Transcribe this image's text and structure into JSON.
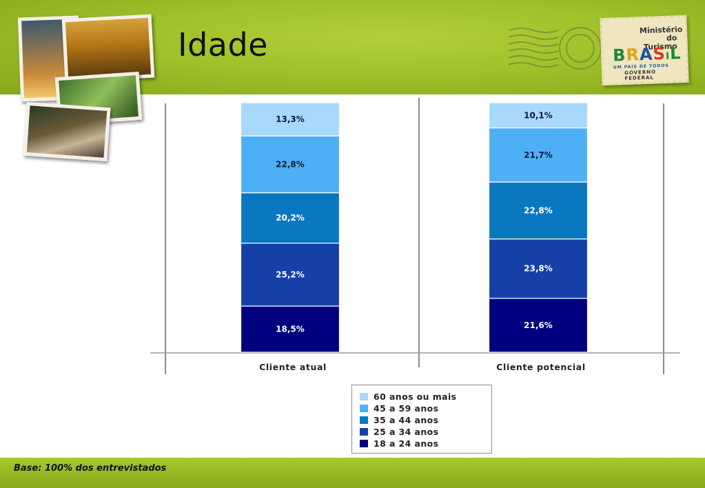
{
  "page": {
    "title": "Idade",
    "footnote": "Base: 100% dos entrevistados"
  },
  "stamp": {
    "ministry": "Ministério do Turismo",
    "brand_letters": [
      "B",
      "R",
      "A",
      "S",
      "I",
      "L"
    ],
    "tagline": "UM PAÍS DE TODOS",
    "government": "GOVERNO FEDERAL"
  },
  "colors": {
    "background_green": "#9fc12a",
    "series": [
      "#000080",
      "#1440a8",
      "#0a78c0",
      "#4db0f5",
      "#a8d8fb"
    ]
  },
  "chart_data": {
    "type": "bar",
    "stacked": true,
    "unit": "%",
    "categories": [
      "Cliente atual",
      "Cliente potencial"
    ],
    "series": [
      {
        "name": "18 a 24 anos",
        "values": [
          18.5,
          21.6
        ],
        "labels": [
          "18,5%",
          "21,6%"
        ]
      },
      {
        "name": "25 a 34 anos",
        "values": [
          25.2,
          23.8
        ],
        "labels": [
          "25,2%",
          "23,8%"
        ]
      },
      {
        "name": "35 a 44 anos",
        "values": [
          20.2,
          22.8
        ],
        "labels": [
          "20,2%",
          "22,8%"
        ]
      },
      {
        "name": "45 a 59 anos",
        "values": [
          22.8,
          21.7
        ],
        "labels": [
          "22,8%",
          "21,7%"
        ]
      },
      {
        "name": "60 anos ou mais",
        "values": [
          13.3,
          10.1
        ],
        "labels": [
          "13,3%",
          "10,1%"
        ]
      }
    ],
    "legend_order": [
      "60 anos ou mais",
      "45 a 59 anos",
      "35 a 44 anos",
      "25 a 34 anos",
      "18 a 24 anos"
    ],
    "legend_position": "bottom",
    "grid": false
  }
}
